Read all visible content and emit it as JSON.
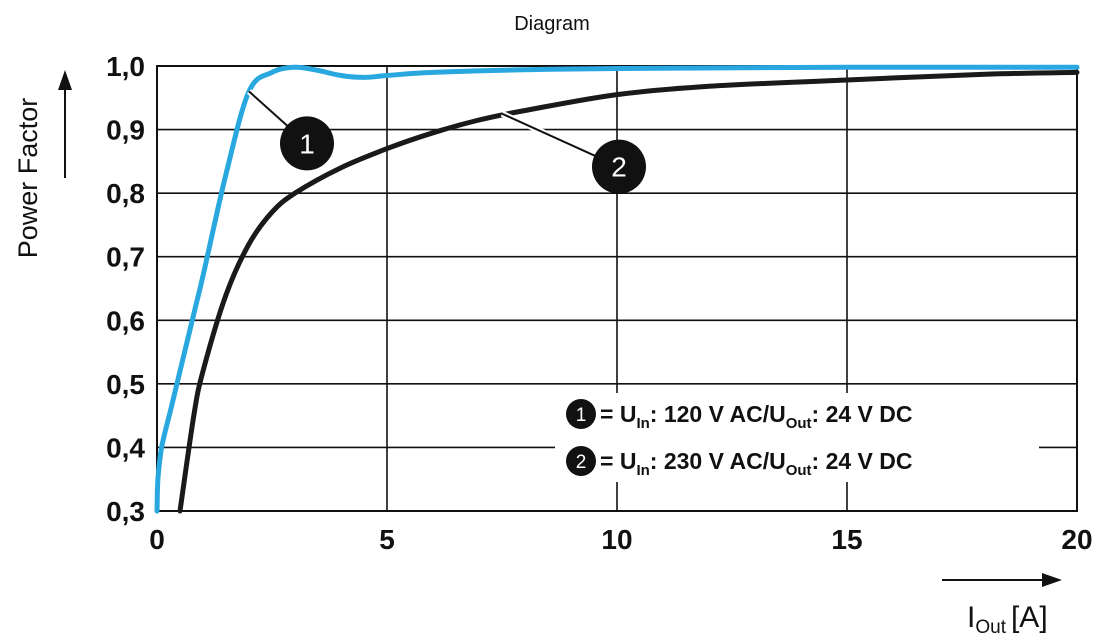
{
  "chart_data": {
    "type": "line",
    "title": "Diagram",
    "ylabel": "Power Factor",
    "xlabel": "I",
    "xlabel_sub": "Out",
    "xlabel_unit": "[A]",
    "xlim": [
      0,
      20
    ],
    "ylim": [
      0.3,
      1.0
    ],
    "x_ticks": [
      0,
      5,
      10,
      15,
      20
    ],
    "x_tick_labels": [
      "0",
      "5",
      "10",
      "15",
      "20"
    ],
    "y_ticks": [
      0.3,
      0.4,
      0.5,
      0.6,
      0.7,
      0.8,
      0.9,
      1.0
    ],
    "y_tick_labels": [
      "0,3",
      "0,4",
      "0,5",
      "0,6",
      "0,7",
      "0,8",
      "0,9",
      "1,0"
    ],
    "grid": true,
    "legend_position": "bottom-right",
    "series": [
      {
        "marker": "1",
        "color": "#29a8e0",
        "legend": {
          "prefix": "= U",
          "in_sub": "In",
          "middle": ": 120 V AC/U",
          "out_sub": "Out",
          "suffix": ": 24 V DC"
        },
        "x": [
          0.0,
          0.02,
          0.1,
          0.3,
          0.5,
          0.8,
          1.0,
          1.5,
          2.0,
          2.5,
          3.0,
          3.5,
          4.0,
          4.5,
          5.0,
          6.0,
          8.0,
          10.0,
          15.0,
          20.0
        ],
        "y": [
          0.3,
          0.35,
          0.4,
          0.46,
          0.52,
          0.61,
          0.67,
          0.83,
          0.96,
          0.99,
          0.998,
          0.993,
          0.985,
          0.982,
          0.985,
          0.99,
          0.994,
          0.996,
          0.998,
          0.998
        ]
      },
      {
        "marker": "2",
        "color": "#1a1a1a",
        "legend": {
          "prefix": "= U",
          "in_sub": "In",
          "middle": ": 230 V AC/U",
          "out_sub": "Out",
          "suffix": ": 24 V DC"
        },
        "x": [
          0.5,
          0.8,
          1.0,
          1.5,
          2.0,
          2.5,
          3.0,
          4.0,
          5.0,
          6.0,
          7.0,
          8.0,
          10.0,
          12.0,
          15.0,
          18.0,
          20.0
        ],
        "y": [
          0.3,
          0.45,
          0.52,
          0.64,
          0.72,
          0.77,
          0.8,
          0.84,
          0.87,
          0.895,
          0.915,
          0.93,
          0.955,
          0.968,
          0.978,
          0.987,
          0.99
        ]
      }
    ],
    "annotations": [
      {
        "marker": "1",
        "series_point": [
          2.0,
          0.96
        ]
      },
      {
        "marker": "2",
        "series_point": [
          7.5,
          0.925
        ]
      }
    ]
  }
}
